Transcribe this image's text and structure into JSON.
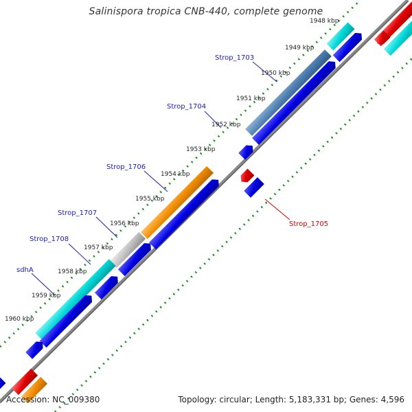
{
  "title": "Salinispora tropica CNB-440, complete genome",
  "accession_text": "Accession: NC_009380",
  "topology_text": "Topology: circular; Length: 5,183,331 bp; Genes: 4,596",
  "colors": {
    "backbone": "#8a8a8a",
    "ticks": "#1e8c1e",
    "cds": "#0000e0",
    "cyan": "#00d8d8",
    "steel": "#4f7fb0",
    "orange": "#f08c00",
    "gray": "#c0c0c0",
    "red": "#e00000",
    "label_blue": "#1a1ab8",
    "label_red": "#d00000"
  },
  "kbp_labels": [
    "1948 kbp",
    "1949 kbp",
    "1950 kbp",
    "1951 kbp",
    "1952 kbp",
    "1953 kbp",
    "1954 kbp",
    "1955 kbp",
    "1956 kbp",
    "1957 kbp",
    "1958 kbp",
    "1959 kbp",
    "1960 kbp"
  ],
  "gene_labels": [
    {
      "name": "Strop_1703",
      "strand": "forward"
    },
    {
      "name": "Strop_1704",
      "strand": "forward"
    },
    {
      "name": "Strop_1706",
      "strand": "forward"
    },
    {
      "name": "Strop_1707",
      "strand": "forward"
    },
    {
      "name": "Strop_1708",
      "strand": "forward"
    },
    {
      "name": "sdhA",
      "strand": "forward"
    },
    {
      "name": "Strop_1705",
      "strand": "reverse"
    }
  ]
}
